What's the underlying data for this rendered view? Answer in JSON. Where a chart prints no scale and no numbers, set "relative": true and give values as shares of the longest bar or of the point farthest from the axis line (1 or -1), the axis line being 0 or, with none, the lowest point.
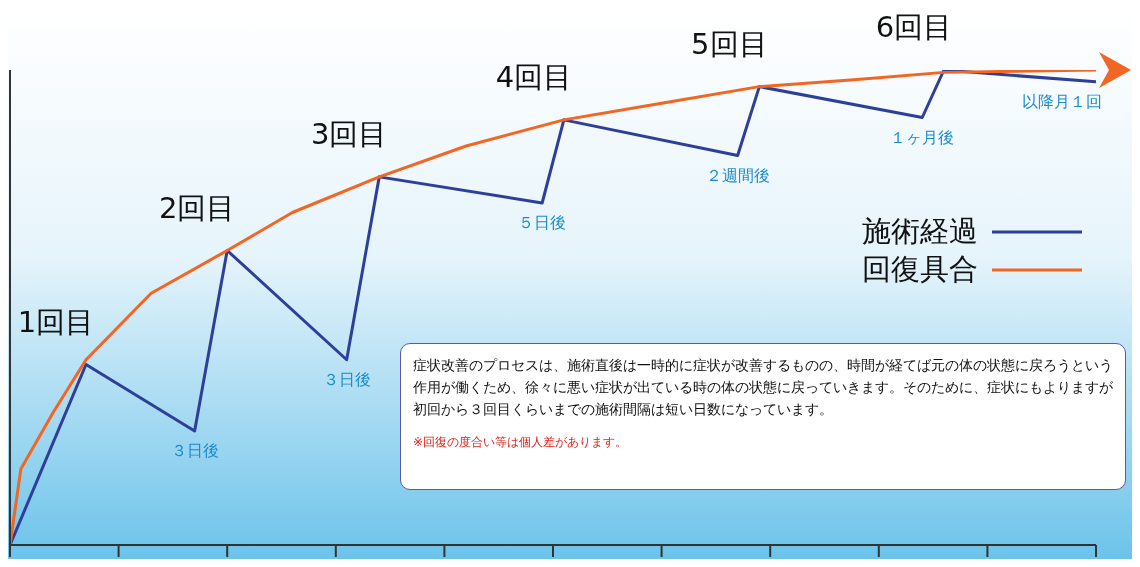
{
  "chart_data": {
    "type": "line",
    "relative": true,
    "categories": [
      null,
      null,
      null,
      null,
      null,
      null,
      null,
      null,
      null,
      null,
      null,
      null,
      null,
      null,
      null,
      null,
      null,
      null,
      null,
      null,
      null,
      null,
      null,
      null,
      null,
      null,
      null,
      null,
      null,
      null,
      null,
      null,
      null,
      null,
      null,
      null,
      null,
      null,
      null,
      null,
      null,
      null,
      null,
      null,
      null,
      null,
      null,
      null,
      null,
      null,
      null,
      null,
      null,
      null,
      null,
      null,
      null,
      null,
      null,
      null,
      null,
      null,
      null,
      null,
      null,
      null,
      null,
      null,
      null,
      null,
      null,
      null,
      null,
      null,
      null,
      null,
      null,
      null,
      null,
      null,
      null,
      null,
      null,
      null,
      null,
      null,
      null,
      null,
      null,
      null,
      null,
      null,
      null,
      null,
      null,
      null,
      null,
      null,
      null,
      null,
      null
    ],
    "series": [
      {
        "name": "施術経過",
        "color": "#2e3f9a",
        "values": [
          0,
          null,
          null,
          null,
          null,
          null,
          null,
          0.38,
          null,
          null,
          null,
          null,
          null,
          null,
          null,
          null,
          null,
          0.24,
          null,
          null,
          0.62,
          null,
          null,
          null,
          null,
          null,
          null,
          null,
          null,
          null,
          null,
          0.39,
          null,
          null,
          0.775,
          null,
          null,
          null,
          null,
          null,
          null,
          null,
          null,
          null,
          null,
          null,
          null,
          null,
          null,
          0.72,
          null,
          0.895,
          null,
          null,
          null,
          null,
          null,
          null,
          null,
          null,
          null,
          null,
          null,
          null,
          null,
          null,
          null,
          0.82,
          null,
          0.965,
          null,
          null,
          null,
          null,
          null,
          null,
          null,
          null,
          null,
          null,
          null,
          null,
          null,
          null,
          0.9,
          null,
          1.0,
          null,
          null,
          null,
          null,
          null,
          null,
          null,
          null,
          null,
          null,
          null,
          null,
          null,
          0.975
        ]
      },
      {
        "name": "回復具合",
        "color": "#f26522",
        "values": [
          0,
          0.16,
          null,
          null,
          0.28,
          null,
          null,
          0.39,
          null,
          null,
          null,
          null,
          null,
          0.53,
          null,
          null,
          null,
          null,
          null,
          null,
          0.62,
          null,
          null,
          null,
          null,
          null,
          0.7,
          null,
          null,
          null,
          null,
          null,
          null,
          null,
          0.775,
          null,
          null,
          null,
          null,
          null,
          null,
          null,
          0.84,
          null,
          null,
          null,
          null,
          null,
          null,
          null,
          null,
          0.895,
          null,
          null,
          null,
          null,
          null,
          null,
          null,
          null,
          0.93,
          null,
          null,
          null,
          null,
          null,
          null,
          null,
          null,
          0.965,
          null,
          null,
          null,
          null,
          null,
          null,
          null,
          null,
          0.98,
          null,
          null,
          null,
          null,
          null,
          null,
          null,
          0.995,
          null,
          null,
          null,
          null,
          null,
          null,
          null,
          null,
          null,
          null,
          null,
          null,
          null,
          1.0
        ]
      }
    ],
    "legend": "right",
    "annotations": [
      "1回目",
      "３日後",
      "2回目",
      "３日後",
      "3回目",
      "５日後",
      "4回目",
      "２週間後",
      "5回目",
      "１ヶ月後",
      "6回目",
      "以降月１回",
      "症状改善のプロセスは、施術直後は一時的に症状が改善するものの、時間が経てば元の体の状態に戻ろうという作用が働くため、徐々に悪い症状が出ている時の体の状態に戻っていきます。そのために、症状にもよりますが初回から３回目くらいまでの施術間隔は短い日数になっています。",
      "※回復の度合い等は個人差があります。"
    ]
  }
}
